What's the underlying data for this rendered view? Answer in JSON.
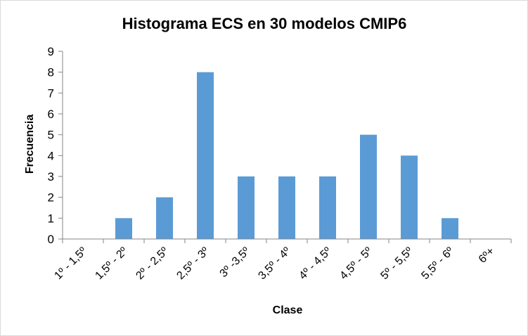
{
  "chart_data": {
    "type": "bar",
    "title": "Histograma ECS en 30 modelos CMIP6",
    "xlabel": "Clase",
    "ylabel": "Frecuencia",
    "categories": [
      "1º - 1,5º",
      "1,5º - 2º",
      "2º - 2,5º",
      "2,5º - 3º",
      "3º -3,5º",
      "3,5º - 4º",
      "4º - 4,5º",
      "4,5º - 5º",
      "5º - 5,5º",
      "5,5º - 6º",
      "6º+"
    ],
    "values": [
      0,
      1,
      2,
      8,
      3,
      3,
      3,
      5,
      4,
      1,
      0
    ],
    "ylim": [
      0,
      9
    ],
    "yticks": [
      "0",
      "1",
      "2",
      "3",
      "4",
      "5",
      "6",
      "7",
      "8",
      "9"
    ],
    "grid": false,
    "legend": "none",
    "bar_color": "#5b9bd5",
    "axis_color": "#868686"
  }
}
